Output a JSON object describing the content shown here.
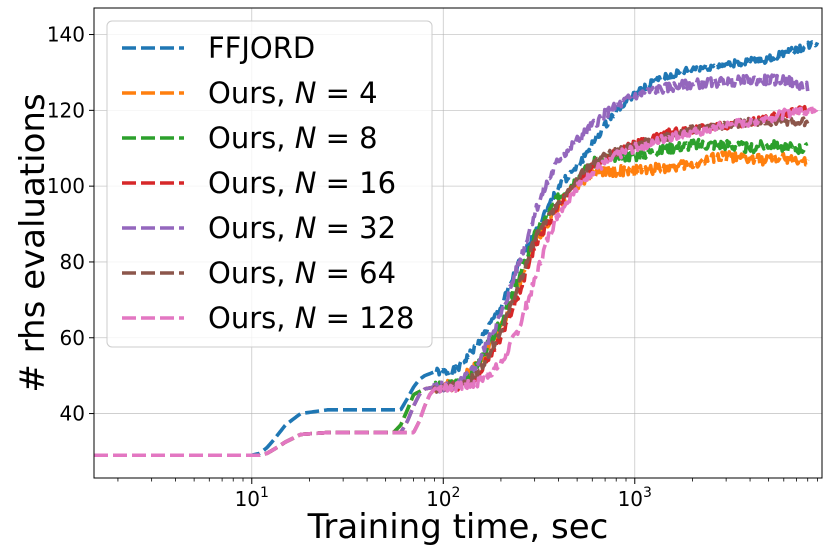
{
  "chart_data": {
    "type": "line",
    "xscale": "log",
    "xlabel": "Training time, sec",
    "ylabel": "# rhs evaluations",
    "xlim": [
      1.5,
      9500
    ],
    "ylim": [
      23,
      147
    ],
    "grid": true,
    "legend_position": "upper-left",
    "xticks": [
      {
        "value": 10,
        "base": "10",
        "exp": "1"
      },
      {
        "value": 100,
        "base": "10",
        "exp": "2"
      },
      {
        "value": 1000,
        "base": "10",
        "exp": "3"
      }
    ],
    "yticks": [
      {
        "value": 40,
        "label": "40"
      },
      {
        "value": 60,
        "label": "60"
      },
      {
        "value": 80,
        "label": "80"
      },
      {
        "value": 100,
        "label": "100"
      },
      {
        "value": 120,
        "label": "120"
      },
      {
        "value": 140,
        "label": "140"
      }
    ],
    "series": [
      {
        "name": "FFJORD",
        "label_text": "FFJORD",
        "label_n": "",
        "color": "#1f77b4",
        "noise": 1.0,
        "x": [
          1.5,
          10,
          11,
          12,
          13,
          15,
          18,
          25,
          40,
          60,
          65,
          70,
          75,
          80,
          90,
          100,
          110,
          120,
          150,
          200,
          250,
          300,
          350,
          400,
          500,
          600,
          700,
          800,
          1000,
          1200,
          1500,
          2000,
          3000,
          4000,
          5000,
          6000,
          7000,
          8000,
          9000
        ],
        "y": [
          29,
          29,
          29.5,
          31,
          33,
          37,
          40,
          41,
          41,
          41,
          44,
          47,
          49,
          50,
          51,
          51,
          51,
          52,
          58,
          68,
          80,
          88,
          94,
          100,
          105,
          111,
          116,
          120,
          124,
          127,
          129,
          131,
          132,
          133,
          133.5,
          135,
          136,
          137,
          138
        ]
      },
      {
        "name": "Ours, N = 4",
        "label_text": "Ours, ",
        "label_n": "4",
        "color": "#ff7f0e",
        "noise": 1.4,
        "x": [
          1.5,
          10,
          11,
          12,
          13,
          15,
          18,
          25,
          40,
          55,
          60,
          65,
          70,
          80,
          90,
          100,
          120,
          150,
          200,
          250,
          300,
          400,
          500,
          600,
          700,
          800,
          1000,
          1500,
          2000,
          3000,
          4000,
          5000,
          6000,
          7000,
          8000
        ],
        "y": [
          29,
          29,
          29,
          29.5,
          30.5,
          32.5,
          34.5,
          35,
          35,
          35,
          37,
          41,
          45,
          46.5,
          47,
          47,
          48,
          53,
          63,
          74,
          85,
          95,
          100,
          103,
          104,
          104,
          104,
          105,
          106,
          108,
          107,
          107,
          107.5,
          107,
          106
        ]
      },
      {
        "name": "Ours, N = 8",
        "label_text": "Ours, ",
        "label_n": "8",
        "color": "#2ca02c",
        "noise": 1.4,
        "x": [
          1.5,
          10,
          11,
          12,
          13,
          15,
          18,
          25,
          40,
          55,
          60,
          65,
          70,
          80,
          90,
          100,
          120,
          150,
          200,
          250,
          300,
          400,
          500,
          600,
          700,
          800,
          1000,
          1500,
          2000,
          3000,
          4000,
          5000,
          6000,
          7000,
          8000
        ],
        "y": [
          29,
          29,
          29,
          29.5,
          30.5,
          32.5,
          34.5,
          35,
          35,
          35,
          37,
          41,
          45,
          46.5,
          47,
          47,
          48,
          53,
          64,
          76,
          87,
          97,
          102,
          106,
          107,
          108,
          108,
          110,
          111,
          111,
          110,
          111,
          110,
          110,
          110
        ]
      },
      {
        "name": "Ours, N = 16",
        "label_text": "Ours, ",
        "label_n": "16",
        "color": "#d62728",
        "noise": 1.0,
        "x": [
          1.5,
          11,
          12,
          13,
          15,
          18,
          25,
          40,
          60,
          65,
          70,
          75,
          80,
          90,
          100,
          120,
          150,
          200,
          250,
          300,
          400,
          500,
          600,
          700,
          800,
          1000,
          1500,
          2000,
          3000,
          4000,
          5000,
          6000,
          7000,
          8000
        ],
        "y": [
          29,
          29,
          29.5,
          30.5,
          32.5,
          34.5,
          35,
          35,
          35,
          38,
          42,
          45,
          46.5,
          47,
          47,
          47,
          50,
          60,
          72,
          84,
          95,
          101,
          105,
          107,
          109,
          111,
          114,
          115,
          116,
          117,
          118,
          119,
          120,
          120
        ]
      },
      {
        "name": "Ours, N = 32",
        "label_text": "Ours, ",
        "label_n": "32",
        "color": "#9467bd",
        "noise": 1.3,
        "x": [
          1.5,
          11,
          12,
          13,
          15,
          18,
          25,
          40,
          60,
          65,
          70,
          75,
          80,
          90,
          100,
          120,
          150,
          200,
          250,
          300,
          350,
          400,
          500,
          600,
          700,
          800,
          1000,
          1200,
          1500,
          2000,
          3000,
          4000,
          5000,
          6000,
          7000,
          8000
        ],
        "y": [
          29,
          29,
          29.5,
          30.5,
          32.5,
          34.5,
          35,
          35,
          35,
          38,
          42,
          45,
          46.5,
          47,
          47,
          47.5,
          53,
          66,
          80,
          93,
          101,
          107,
          112,
          116,
          119,
          121,
          124,
          125,
          126,
          127,
          127.5,
          128,
          128,
          128,
          127,
          126
        ]
      },
      {
        "name": "Ours, N = 64",
        "label_text": "Ours, ",
        "label_n": "64",
        "color": "#8c564b",
        "noise": 1.0,
        "x": [
          1.5,
          11,
          12,
          13,
          15,
          18,
          25,
          40,
          70,
          75,
          80,
          85,
          90,
          100,
          120,
          150,
          200,
          250,
          300,
          400,
          500,
          600,
          700,
          800,
          1000,
          1500,
          2000,
          3000,
          4000,
          5000,
          6000,
          7000,
          8000
        ],
        "y": [
          29,
          29,
          29.5,
          30.5,
          32.5,
          34.5,
          35,
          35,
          35,
          38,
          42,
          45,
          46.5,
          47,
          47.5,
          50,
          62,
          74,
          86,
          96,
          102,
          106,
          108,
          109,
          111,
          113,
          115,
          116,
          117,
          117,
          117,
          117,
          117
        ]
      },
      {
        "name": "Ours, N = 128",
        "label_text": "Ours, ",
        "label_n": "128",
        "color": "#e377c2",
        "noise": 1.2,
        "x": [
          1.5,
          11,
          12,
          13,
          15,
          18,
          25,
          40,
          70,
          75,
          80,
          85,
          90,
          100,
          120,
          150,
          200,
          250,
          300,
          350,
          400,
          500,
          600,
          700,
          800,
          1000,
          1500,
          2000,
          3000,
          4000,
          5000,
          6000,
          7000,
          8000,
          9000
        ],
        "y": [
          29,
          29,
          29.5,
          30.5,
          32.5,
          34.5,
          35,
          35,
          35,
          38,
          42,
          45,
          46.5,
          47,
          47,
          48,
          53,
          63,
          75,
          86,
          93,
          100,
          104,
          106,
          108,
          110,
          113,
          114,
          116,
          117,
          118,
          119,
          120,
          120,
          121
        ]
      }
    ]
  }
}
